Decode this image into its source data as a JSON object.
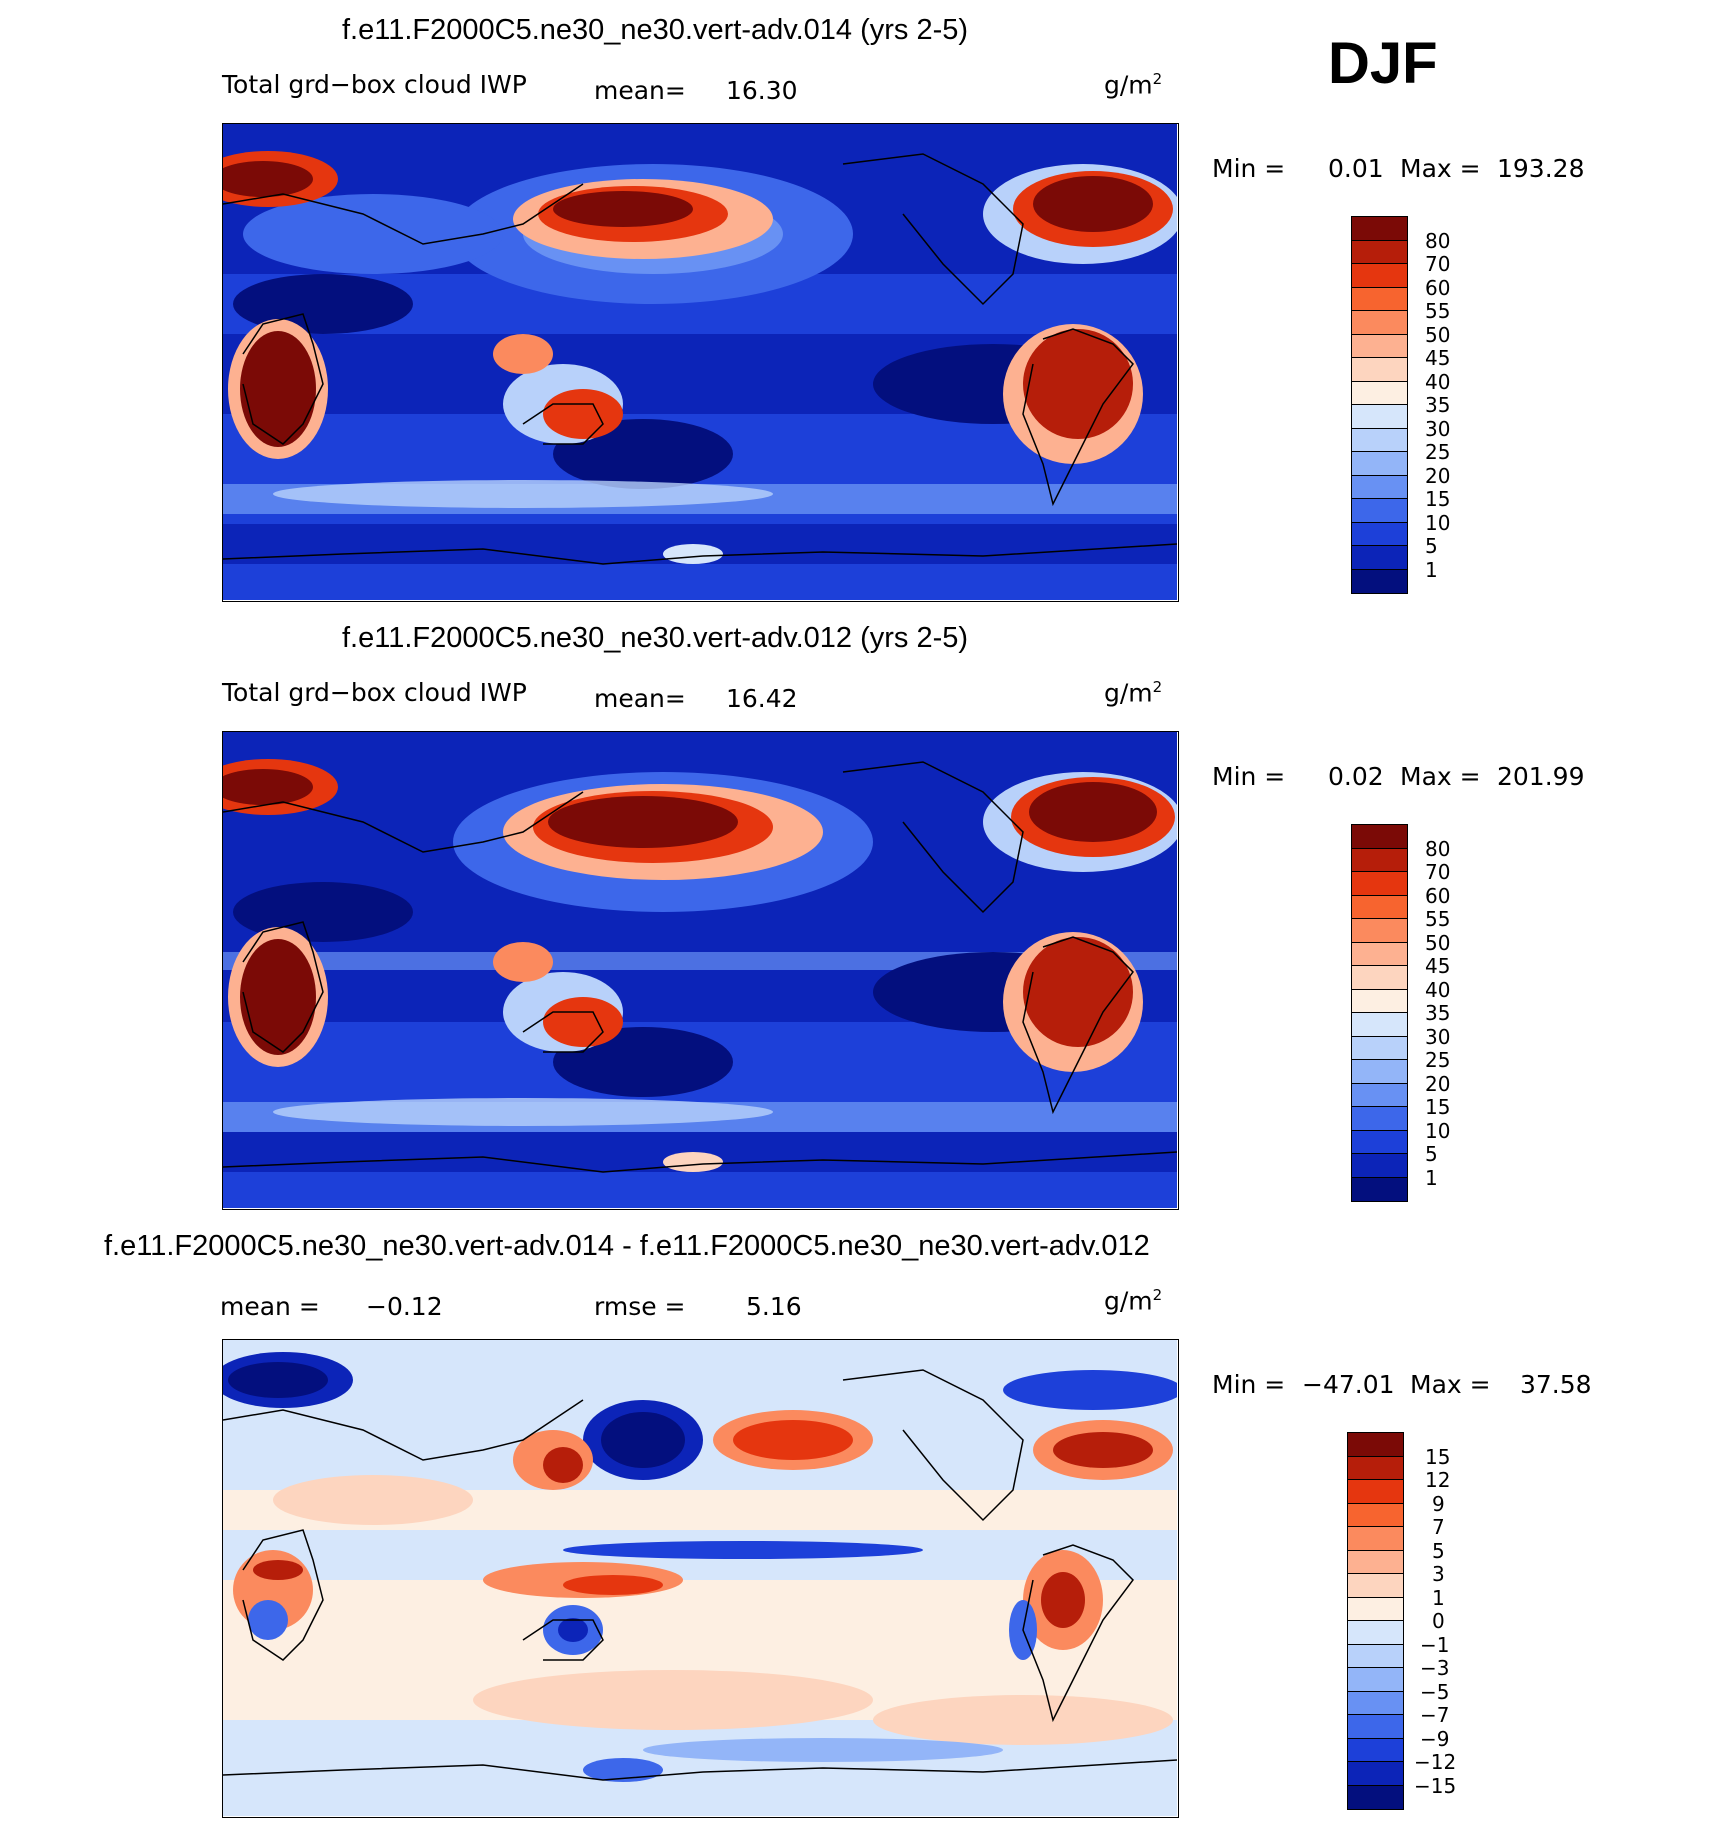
{
  "season": "DJF",
  "panels": [
    {
      "id": "top",
      "title": "f.e11.F2000C5.ne30_ne30.vert-adv.014 (yrs 2-5)",
      "left_label": "Total grd−box cloud IWP",
      "mean_label": "mean=",
      "mean_value": "16.30",
      "units": "g/m",
      "units_exp": "2",
      "min_label": "Min =",
      "min_value": "0.01",
      "max_label": "Max =",
      "max_value": "193.28",
      "colorbar_ticks": [
        "80",
        "70",
        "60",
        "55",
        "50",
        "45",
        "40",
        "35",
        "30",
        "25",
        "20",
        "15",
        "10",
        "5",
        "1"
      ]
    },
    {
      "id": "middle",
      "title": "f.e11.F2000C5.ne30_ne30.vert-adv.012 (yrs 2-5)",
      "left_label": "Total grd−box cloud IWP",
      "mean_label": "mean=",
      "mean_value": "16.42",
      "units": "g/m",
      "units_exp": "2",
      "min_label": "Min =",
      "min_value": "0.02",
      "max_label": "Max =",
      "max_value": "201.99",
      "colorbar_ticks": [
        "80",
        "70",
        "60",
        "55",
        "50",
        "45",
        "40",
        "35",
        "30",
        "25",
        "20",
        "15",
        "10",
        "5",
        "1"
      ]
    },
    {
      "id": "bottom",
      "title": "f.e11.F2000C5.ne30_ne30.vert-adv.014 - f.e11.F2000C5.ne30_ne30.vert-adv.012",
      "mean_label": "mean =",
      "mean_value": "−0.12",
      "rmse_label": "rmse =",
      "rmse_value": "5.16",
      "units": "g/m",
      "units_exp": "2",
      "min_label": "Min =",
      "min_value": "−47.01",
      "max_label": "Max =",
      "max_value": "37.58",
      "colorbar_ticks": [
        "15",
        "12",
        "9",
        "7",
        "5",
        "3",
        "1",
        "0",
        "−1",
        "−3",
        "−5",
        "−7",
        "−9",
        "−12",
        "−15"
      ]
    }
  ],
  "colors": {
    "abs_scale": [
      "#7b0a06",
      "#b61e0a",
      "#e5360f",
      "#f7642f",
      "#fb8a5e",
      "#fdb191",
      "#fdd5bf",
      "#fdefe2",
      "#d6e6fb",
      "#b8d1fa",
      "#93b5f8",
      "#6891f3",
      "#3d67ea",
      "#1d40d9",
      "#0c24b8",
      "#030f7e"
    ],
    "diff_scale": [
      "#7b0a06",
      "#b61e0a",
      "#e5360f",
      "#f7642f",
      "#fb8a5e",
      "#fdb191",
      "#fdd5bf",
      "#fdefe2",
      "#d6e6fb",
      "#b8d1fa",
      "#93b5f8",
      "#6891f3",
      "#3d67ea",
      "#1d40d9",
      "#0c24b8",
      "#030f7e"
    ]
  }
}
